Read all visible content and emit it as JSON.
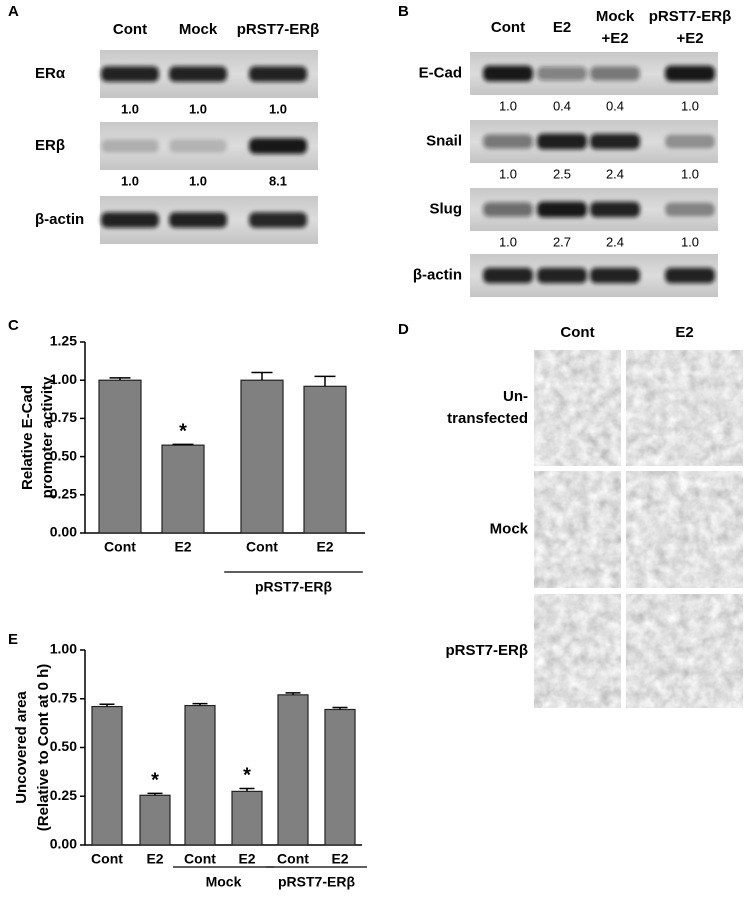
{
  "panel_a": {
    "label": "A",
    "lanes": [
      [
        "Cont"
      ],
      [
        "Mock"
      ],
      [
        "pRST7-ERβ"
      ]
    ],
    "rows": [
      {
        "name": "ERα",
        "quant": [
          "1.0",
          "1.0",
          "1.0"
        ]
      },
      {
        "name": "ERβ",
        "quant": [
          "1.0",
          "1.0",
          "8.1"
        ]
      },
      {
        "name": "β-actin"
      }
    ]
  },
  "panel_b": {
    "label": "B",
    "lanes": [
      [
        "Cont"
      ],
      [
        "E2"
      ],
      [
        "Mock",
        "+E2"
      ],
      [
        "pRST7-ERβ",
        "+E2"
      ]
    ],
    "rows": [
      {
        "name": "E-Cad",
        "quant": [
          "1.0",
          "0.4",
          "0.4",
          "1.0"
        ]
      },
      {
        "name": "Snail",
        "quant": [
          "1.0",
          "2.5",
          "2.4",
          "1.0"
        ]
      },
      {
        "name": "Slug",
        "quant": [
          "1.0",
          "2.7",
          "2.4",
          "1.0"
        ]
      },
      {
        "name": "β-actin"
      }
    ]
  },
  "chart_data": [
    {
      "type": "bar",
      "panel_label": "C",
      "y_label": [
        "Relative E-Cad",
        "promoter activity"
      ],
      "categories": [
        "Cont",
        "E2",
        "Cont",
        "E2"
      ],
      "values": [
        1.0,
        0.575,
        1.0,
        0.96
      ],
      "errors": [
        0.015,
        0.005,
        0.05,
        0.065
      ],
      "annotations": [
        null,
        "*",
        null,
        null
      ],
      "groups": [
        {
          "label": "pRST7-ERβ",
          "span": [
            2,
            3
          ]
        }
      ],
      "color": "#808080",
      "ylim": [
        0,
        1.25
      ],
      "yticks": [
        {
          "value": 0,
          "label": "0.00"
        },
        0.25,
        {
          "value": 0.5,
          "label": "0.50"
        },
        0.75,
        {
          "value": 1,
          "label": "1.00"
        },
        1.25
      ]
    },
    {
      "type": "bar",
      "panel_label": "E",
      "y_label": [
        "Uncovered area",
        "(Relative to Cont at 0 h)"
      ],
      "categories": [
        "Cont",
        "E2",
        "Cont",
        "E2",
        "Cont",
        "E2"
      ],
      "values": [
        0.71,
        0.255,
        0.715,
        0.275,
        0.77,
        0.695
      ],
      "errors": [
        0.012,
        0.01,
        0.01,
        0.015,
        0.01,
        0.01
      ],
      "annotations": [
        null,
        "*",
        null,
        "*",
        null,
        null
      ],
      "groups": [
        {
          "label": "Mock",
          "span": [
            2,
            3
          ]
        },
        {
          "label": "pRST7-ERβ",
          "span": [
            4,
            5
          ]
        }
      ],
      "color": "#808080",
      "ylim": [
        0,
        1
      ],
      "yticks": [
        {
          "value": 0,
          "label": "0.00"
        },
        0.25,
        {
          "value": 0.5,
          "label": "0.50"
        },
        0.75,
        {
          "value": 1,
          "label": "1.00"
        }
      ]
    }
  ],
  "panel_d": {
    "label": "D",
    "columns": [
      "Cont",
      "E2"
    ],
    "rows": [
      [
        "Un-",
        "transfected"
      ],
      [
        "Mock"
      ],
      [
        "pRST7-ERβ"
      ]
    ]
  }
}
